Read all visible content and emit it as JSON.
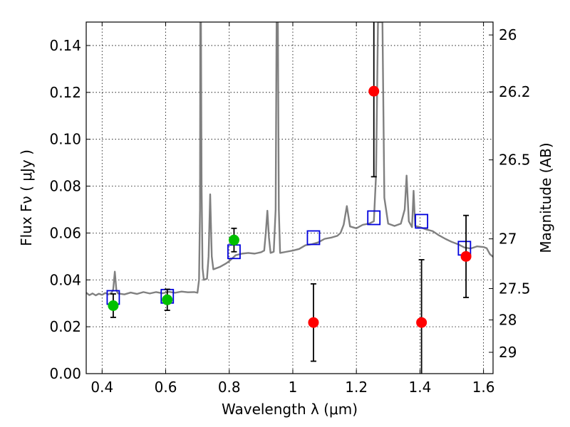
{
  "chart_data": {
    "type": "scatter",
    "xlabel": "Wavelength  λ (μm)",
    "ylabel": "Flux  Fν ( μJy )",
    "y2label": "Magnitude (AB)",
    "xlim": [
      0.35,
      1.63
    ],
    "ylim": [
      0.0,
      0.15
    ],
    "grid": true,
    "x_ticks": [
      0.4,
      0.6,
      0.8,
      1.0,
      1.2,
      1.4,
      1.6
    ],
    "x_tick_labels": [
      "0.4",
      "0.6",
      "0.8",
      "1",
      "1.2",
      "1.4",
      "1.6"
    ],
    "y_ticks": [
      0.0,
      0.02,
      0.04,
      0.06,
      0.08,
      0.1,
      0.12,
      0.14
    ],
    "y_tick_labels": [
      "0.00",
      "0.02",
      "0.04",
      "0.06",
      "0.08",
      "0.10",
      "0.12",
      "0.14"
    ],
    "y2_ticks": [
      {
        "label": "26",
        "flux": 0.1445
      },
      {
        "label": "26.2",
        "flux": 0.1202
      },
      {
        "label": "26.5",
        "flux": 0.0912
      },
      {
        "label": "27",
        "flux": 0.0575
      },
      {
        "label": "27.5",
        "flux": 0.0363
      },
      {
        "label": "28",
        "flux": 0.0229
      },
      {
        "label": "29",
        "flux": 0.0091
      }
    ],
    "colors": {
      "model": "#808080",
      "green_points": "#00c000",
      "red_points": "#ff0000",
      "open_squares": "#0000dd",
      "errorbar": "#000000"
    },
    "series": [
      {
        "kind": "line",
        "points": [
          [
            0.35,
            0.0345
          ],
          [
            0.36,
            0.0335
          ],
          [
            0.37,
            0.0342
          ],
          [
            0.38,
            0.0334
          ],
          [
            0.39,
            0.0341
          ],
          [
            0.4,
            0.0336
          ],
          [
            0.41,
            0.0344
          ],
          [
            0.42,
            0.0338
          ],
          [
            0.43,
            0.0345
          ],
          [
            0.435,
            0.036
          ],
          [
            0.44,
            0.0435
          ],
          [
            0.445,
            0.0355
          ],
          [
            0.45,
            0.0342
          ],
          [
            0.47,
            0.0338
          ],
          [
            0.49,
            0.0346
          ],
          [
            0.51,
            0.034
          ],
          [
            0.53,
            0.0348
          ],
          [
            0.55,
            0.0342
          ],
          [
            0.57,
            0.0348
          ],
          [
            0.59,
            0.0343
          ],
          [
            0.61,
            0.0349
          ],
          [
            0.63,
            0.0345
          ],
          [
            0.65,
            0.035
          ],
          [
            0.67,
            0.0347
          ],
          [
            0.69,
            0.0348
          ],
          [
            0.7,
            0.0345
          ],
          [
            0.705,
            0.04
          ],
          [
            0.708,
            0.07
          ],
          [
            0.709,
            0.15
          ],
          [
            0.711,
            0.15
          ],
          [
            0.713,
            0.08
          ],
          [
            0.716,
            0.045
          ],
          [
            0.72,
            0.04
          ],
          [
            0.73,
            0.0405
          ],
          [
            0.735,
            0.05
          ],
          [
            0.74,
            0.0765
          ],
          [
            0.745,
            0.05
          ],
          [
            0.75,
            0.0445
          ],
          [
            0.77,
            0.0455
          ],
          [
            0.79,
            0.047
          ],
          [
            0.8,
            0.048
          ],
          [
            0.82,
            0.0505
          ],
          [
            0.84,
            0.0512
          ],
          [
            0.86,
            0.0515
          ],
          [
            0.88,
            0.0512
          ],
          [
            0.9,
            0.0518
          ],
          [
            0.91,
            0.0525
          ],
          [
            0.915,
            0.06
          ],
          [
            0.92,
            0.0695
          ],
          [
            0.925,
            0.058
          ],
          [
            0.93,
            0.0515
          ],
          [
            0.94,
            0.052
          ],
          [
            0.946,
            0.07
          ],
          [
            0.949,
            0.15
          ],
          [
            0.953,
            0.15
          ],
          [
            0.956,
            0.07
          ],
          [
            0.96,
            0.0515
          ],
          [
            0.98,
            0.052
          ],
          [
            1.0,
            0.0525
          ],
          [
            1.02,
            0.0532
          ],
          [
            1.04,
            0.0548
          ],
          [
            1.06,
            0.0552
          ],
          [
            1.08,
            0.056
          ],
          [
            1.1,
            0.0575
          ],
          [
            1.12,
            0.058
          ],
          [
            1.14,
            0.0588
          ],
          [
            1.15,
            0.06
          ],
          [
            1.16,
            0.0635
          ],
          [
            1.17,
            0.0715
          ],
          [
            1.18,
            0.0628
          ],
          [
            1.2,
            0.062
          ],
          [
            1.22,
            0.0635
          ],
          [
            1.24,
            0.064
          ],
          [
            1.255,
            0.065
          ],
          [
            1.262,
            0.085
          ],
          [
            1.268,
            0.15
          ],
          [
            1.282,
            0.15
          ],
          [
            1.288,
            0.075
          ],
          [
            1.3,
            0.064
          ],
          [
            1.32,
            0.063
          ],
          [
            1.34,
            0.064
          ],
          [
            1.352,
            0.07
          ],
          [
            1.358,
            0.0845
          ],
          [
            1.365,
            0.065
          ],
          [
            1.375,
            0.0625
          ],
          [
            1.38,
            0.078
          ],
          [
            1.385,
            0.063
          ],
          [
            1.4,
            0.0625
          ],
          [
            1.42,
            0.0615
          ],
          [
            1.44,
            0.0608
          ],
          [
            1.46,
            0.059
          ],
          [
            1.48,
            0.0575
          ],
          [
            1.5,
            0.0562
          ],
          [
            1.52,
            0.0552
          ],
          [
            1.54,
            0.0538
          ],
          [
            1.56,
            0.0534
          ],
          [
            1.58,
            0.0543
          ],
          [
            1.6,
            0.054
          ],
          [
            1.61,
            0.0535
          ],
          [
            1.62,
            0.051
          ],
          [
            1.63,
            0.0498
          ]
        ]
      },
      {
        "kind": "open_squares",
        "points": [
          [
            0.435,
            0.0325
          ],
          [
            0.605,
            0.033
          ],
          [
            0.815,
            0.052
          ],
          [
            1.065,
            0.058
          ],
          [
            1.255,
            0.0665
          ],
          [
            1.405,
            0.065
          ],
          [
            1.54,
            0.0535
          ]
        ]
      },
      {
        "kind": "green_points",
        "points": [
          {
            "x": 0.435,
            "y": 0.029,
            "err": 0.005
          },
          {
            "x": 0.605,
            "y": 0.0315,
            "err": 0.0045
          },
          {
            "x": 0.815,
            "y": 0.057,
            "err": 0.005
          }
        ]
      },
      {
        "kind": "red_points",
        "points": [
          {
            "x": 1.065,
            "y": 0.0218,
            "err_low": 0.0165,
            "err_high": 0.0165
          },
          {
            "x": 1.255,
            "y": 0.1205,
            "err_low": 0.0365,
            "err_high": 0.03
          },
          {
            "x": 1.405,
            "y": 0.0218,
            "err_low": 0.0268,
            "err_high": 0.0268
          },
          {
            "x": 1.545,
            "y": 0.05,
            "err_low": 0.0175,
            "err_high": 0.0175
          }
        ]
      }
    ]
  }
}
